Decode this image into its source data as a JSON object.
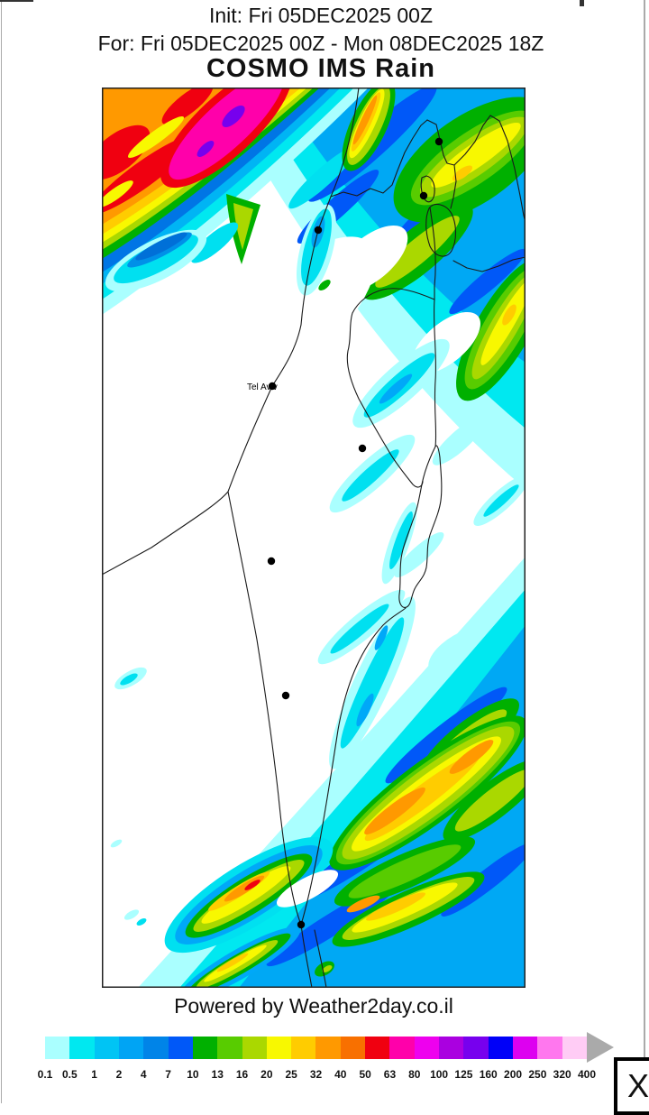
{
  "header": {
    "init_line": "Init: Fri 05DEC2025 00Z",
    "valid_line": "For: Fri 05DEC2025 00Z - Mon 08DEC2025 18Z",
    "title": "COSMO IMS Rain"
  },
  "map": {
    "city_label": "Tel Aviv"
  },
  "footer": {
    "powered_by": "Powered by Weather2day.co.il"
  },
  "legend": {
    "values": [
      "0.1",
      "0.5",
      "1",
      "2",
      "4",
      "7",
      "10",
      "13",
      "16",
      "20",
      "25",
      "32",
      "40",
      "50",
      "63",
      "80",
      "100",
      "125",
      "160",
      "200",
      "250",
      "320",
      "400"
    ],
    "colors": [
      "#aaffff",
      "#00e8f0",
      "#00c4f4",
      "#00a4f4",
      "#0084e8",
      "#0058f8",
      "#00b000",
      "#58cc00",
      "#aad800",
      "#f8f800",
      "#ffcc00",
      "#ff9900",
      "#f87000",
      "#f00010",
      "#ff00aa",
      "#ee00ee",
      "#aa00e0",
      "#7700ee",
      "#0000f8",
      "#dd00f0",
      "#ff77ee",
      "#ffccf5"
    ],
    "arrow_color": "#aaaaaa"
  },
  "close_button": {
    "label": "X"
  }
}
